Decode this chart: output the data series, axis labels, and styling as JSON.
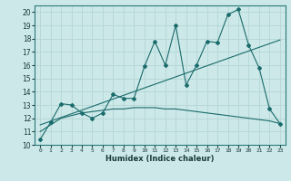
{
  "xlabel": "Humidex (Indice chaleur)",
  "ylabel": "",
  "bg_color": "#cce8e8",
  "grid_color": "#b8d8d8",
  "line_color": "#1a6b6b",
  "xlim": [
    -0.5,
    23.5
  ],
  "ylim": [
    10,
    20.5
  ],
  "xticks": [
    0,
    1,
    2,
    3,
    4,
    5,
    6,
    7,
    8,
    9,
    10,
    11,
    12,
    13,
    14,
    15,
    16,
    17,
    18,
    19,
    20,
    21,
    22,
    23
  ],
  "yticks": [
    10,
    11,
    12,
    13,
    14,
    15,
    16,
    17,
    18,
    19,
    20
  ],
  "line1_x": [
    0,
    1,
    2,
    3,
    4,
    5,
    6,
    7,
    8,
    9,
    10,
    11,
    12,
    13,
    14,
    15,
    16,
    17,
    18,
    19,
    20,
    21,
    22,
    23
  ],
  "line1_y": [
    10.4,
    11.7,
    13.1,
    13.0,
    12.4,
    12.0,
    12.4,
    13.8,
    13.5,
    13.5,
    15.9,
    17.8,
    16.0,
    19.0,
    14.5,
    16.0,
    17.8,
    17.7,
    19.8,
    20.2,
    17.5,
    15.8,
    12.7,
    11.6
  ],
  "line2_x": [
    0,
    23
  ],
  "line2_y": [
    11.5,
    17.9
  ],
  "line3_x": [
    0,
    1,
    2,
    3,
    4,
    5,
    6,
    7,
    8,
    9,
    10,
    11,
    12,
    13,
    14,
    15,
    16,
    17,
    18,
    19,
    20,
    21,
    22,
    23
  ],
  "line3_y": [
    11.0,
    11.5,
    12.0,
    12.2,
    12.4,
    12.5,
    12.6,
    12.7,
    12.7,
    12.8,
    12.8,
    12.8,
    12.7,
    12.7,
    12.6,
    12.5,
    12.4,
    12.3,
    12.2,
    12.1,
    12.0,
    11.9,
    11.8,
    11.6
  ]
}
